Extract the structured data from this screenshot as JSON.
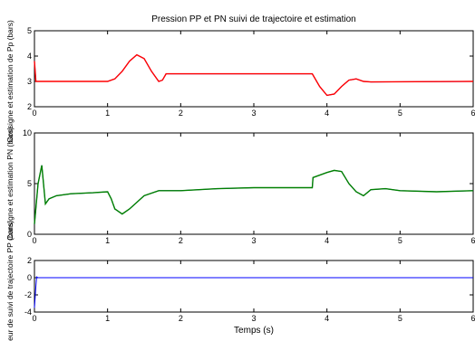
{
  "chart_data": [
    {
      "type": "line",
      "title": "Pression PP et PN suivi de trajectoire et estimation",
      "xlabel": "",
      "ylabel": "Consigne et estimation de Pp (bars)",
      "xlim": [
        0,
        6
      ],
      "ylim": [
        2,
        5
      ],
      "xticks": [
        0,
        1,
        2,
        3,
        4,
        5,
        6
      ],
      "yticks": [
        2,
        3,
        4,
        5
      ],
      "grid": false,
      "colors": {
        "reference": "#0000ff",
        "estimate": "#ff0000"
      },
      "series": [
        {
          "x": [
            0,
            0.02,
            0.05,
            1.0,
            1.1,
            1.2,
            1.3,
            1.4,
            1.5,
            1.6,
            1.7,
            1.75,
            1.8,
            3.8,
            3.9,
            4.0,
            4.1,
            4.2,
            4.3,
            4.4,
            4.5,
            4.6,
            6.0
          ],
          "y": [
            3.8,
            3.0,
            3.0,
            3.0,
            3.1,
            3.4,
            3.8,
            4.05,
            3.9,
            3.4,
            3.0,
            3.05,
            3.3,
            3.3,
            2.8,
            2.45,
            2.5,
            2.8,
            3.05,
            3.1,
            3.0,
            2.98,
            3.0
          ]
        },
        {
          "x": [
            0,
            0.02,
            0.05,
            1.0,
            1.1,
            1.2,
            1.3,
            1.4,
            1.5,
            1.6,
            1.7,
            1.75,
            1.8,
            3.8,
            3.9,
            4.0,
            4.1,
            4.2,
            4.3,
            4.4,
            4.5,
            4.6,
            6.0
          ],
          "y": [
            3.8,
            3.0,
            3.0,
            3.0,
            3.1,
            3.4,
            3.8,
            4.05,
            3.9,
            3.4,
            3.0,
            3.05,
            3.3,
            3.3,
            2.8,
            2.45,
            2.5,
            2.8,
            3.05,
            3.1,
            3.0,
            2.98,
            3.0
          ]
        }
      ]
    },
    {
      "type": "line",
      "title": "",
      "xlabel": "",
      "ylabel": "Consigne et estimation PN (bars)",
      "xlim": [
        0,
        6
      ],
      "ylim": [
        0,
        10
      ],
      "xticks": [
        0,
        1,
        2,
        3,
        4,
        5,
        6
      ],
      "yticks": [
        0,
        5,
        10
      ],
      "grid": false,
      "colors": {
        "reference": "#0000ff",
        "estimate": "#008000"
      },
      "series": [
        {
          "x": [
            0,
            0.05,
            0.1,
            0.15,
            0.2,
            0.3,
            0.5,
            0.8,
            1.0,
            1.05,
            1.1,
            1.2,
            1.3,
            1.5,
            1.7,
            2.0,
            2.5,
            3.0,
            3.5,
            3.8,
            3.81,
            4.0,
            4.1,
            4.2,
            4.3,
            4.4,
            4.5,
            4.6,
            4.8,
            5.0,
            5.5,
            6.0
          ],
          "y": [
            1.0,
            5.0,
            6.8,
            3.0,
            3.5,
            3.8,
            4.0,
            4.1,
            4.2,
            3.5,
            2.5,
            2.0,
            2.5,
            3.8,
            4.3,
            4.3,
            4.5,
            4.6,
            4.6,
            4.6,
            5.6,
            6.1,
            6.3,
            6.2,
            5.0,
            4.2,
            3.8,
            4.4,
            4.5,
            4.3,
            4.2,
            4.3
          ]
        },
        {
          "x": [
            0,
            0.05,
            0.1,
            0.15,
            0.2,
            0.3,
            0.5,
            0.8,
            1.0,
            1.05,
            1.1,
            1.2,
            1.3,
            1.5,
            1.7,
            2.0,
            2.5,
            3.0,
            3.5,
            3.8,
            3.81,
            4.0,
            4.1,
            4.2,
            4.3,
            4.4,
            4.5,
            4.6,
            4.8,
            5.0,
            5.5,
            6.0
          ],
          "y": [
            1.0,
            5.0,
            6.8,
            3.0,
            3.5,
            3.8,
            4.0,
            4.1,
            4.2,
            3.5,
            2.5,
            2.0,
            2.5,
            3.8,
            4.3,
            4.3,
            4.5,
            4.6,
            4.6,
            4.6,
            5.6,
            6.1,
            6.3,
            6.2,
            5.0,
            4.2,
            3.8,
            4.4,
            4.5,
            4.3,
            4.2,
            4.3
          ]
        }
      ]
    },
    {
      "type": "line",
      "title": "",
      "xlabel": "Temps (s)",
      "ylabel": "Erreur de suivi de trajectoire PP (bars)",
      "xlim": [
        0,
        6
      ],
      "ylim": [
        -4,
        2
      ],
      "xticks": [
        0,
        1,
        2,
        3,
        4,
        5,
        6
      ],
      "yticks": [
        -4,
        -2,
        0,
        2
      ],
      "grid": false,
      "colors": {
        "error": "#0000ff"
      },
      "series": [
        {
          "x": [
            0,
            0.02,
            0.03,
            0.05,
            0.1,
            6.0
          ],
          "y": [
            -3.5,
            -1.0,
            0.1,
            0.0,
            0.0,
            0.0
          ]
        }
      ]
    }
  ]
}
